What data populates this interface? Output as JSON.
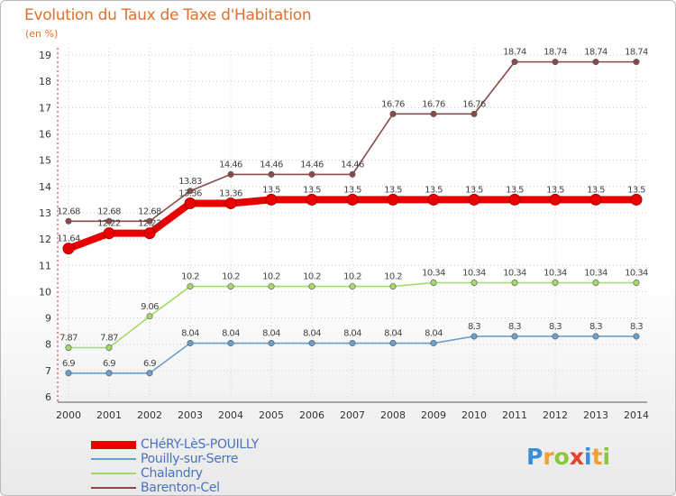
{
  "chart_data": {
    "type": "line",
    "title": "Evolution du Taux de Taxe d'Habitation",
    "ylabel": "(en %)",
    "xlabel": "",
    "x": [
      "2000",
      "2001",
      "2002",
      "2003",
      "2004",
      "2005",
      "2006",
      "2007",
      "2008",
      "2009",
      "2010",
      "2011",
      "2012",
      "2013",
      "2014"
    ],
    "ylim": [
      6,
      19
    ],
    "yticks": [
      6,
      7,
      8,
      9,
      10,
      11,
      12,
      13,
      14,
      15,
      16,
      17,
      18,
      19
    ],
    "series": [
      {
        "name": "CHéRY-LèS-POUILLY",
        "color": "#e80000",
        "values": [
          11.64,
          12.22,
          12.22,
          13.36,
          13.36,
          13.5,
          13.5,
          13.5,
          13.5,
          13.5,
          13.5,
          13.5,
          13.5,
          13.5,
          13.5
        ],
        "labels": [
          "11.64",
          "12.22",
          "12.22",
          "13.36",
          "13.36",
          "13.5",
          "13.5",
          "13.5",
          "13.5",
          "13.5",
          "13.5",
          "13.5",
          "13.5",
          "13.5",
          "13.5"
        ]
      },
      {
        "name": "Pouilly-sur-Serre",
        "color": "#6a9fcf",
        "values": [
          6.9,
          6.9,
          6.9,
          8.04,
          8.04,
          8.04,
          8.04,
          8.04,
          8.04,
          8.04,
          8.3,
          8.3,
          8.3,
          8.3,
          8.3
        ],
        "labels": [
          "6.9",
          "6.9",
          "6.9",
          "8.04",
          "8.04",
          "8.04",
          "8.04",
          "8.04",
          "8.04",
          "8.04",
          "8.3",
          "8.3",
          "8.3",
          "8.3",
          "8.3"
        ]
      },
      {
        "name": "Chalandry",
        "color": "#a6d96a",
        "values": [
          7.87,
          7.87,
          9.06,
          10.2,
          10.2,
          10.2,
          10.2,
          10.2,
          10.2,
          10.34,
          10.34,
          10.34,
          10.34,
          10.34,
          10.34
        ],
        "labels": [
          "7.87",
          "7.87",
          "9.06",
          "10.2",
          "10.2",
          "10.2",
          "10.2",
          "10.2",
          "10.2",
          "10.34",
          "10.34",
          "10.34",
          "10.34",
          "10.34",
          "10.34"
        ]
      },
      {
        "name": "Barenton-Cel",
        "color": "#8b4a4a",
        "values": [
          12.68,
          12.68,
          12.68,
          13.83,
          14.46,
          14.46,
          14.46,
          14.46,
          16.76,
          16.76,
          16.76,
          18.74,
          18.74,
          18.74,
          18.74
        ],
        "labels": [
          "12.68",
          "12.68",
          "12.68",
          "13.83",
          "14.46",
          "14.46",
          "14.46",
          "14.46",
          "16.76",
          "16.76",
          "16.76",
          "18.74",
          "18.74",
          "18.74",
          "18.74"
        ]
      }
    ]
  },
  "logo": {
    "letters": [
      {
        "ch": "P",
        "color": "#3a8fd8"
      },
      {
        "ch": "r",
        "color": "#f0a030"
      },
      {
        "ch": "o",
        "color": "#8cc63f"
      },
      {
        "ch": "x",
        "color": "#e84030"
      },
      {
        "ch": "i",
        "color": "#3a8fd8"
      },
      {
        "ch": "t",
        "color": "#f0a030"
      },
      {
        "ch": "i",
        "color": "#8cc63f"
      }
    ]
  }
}
